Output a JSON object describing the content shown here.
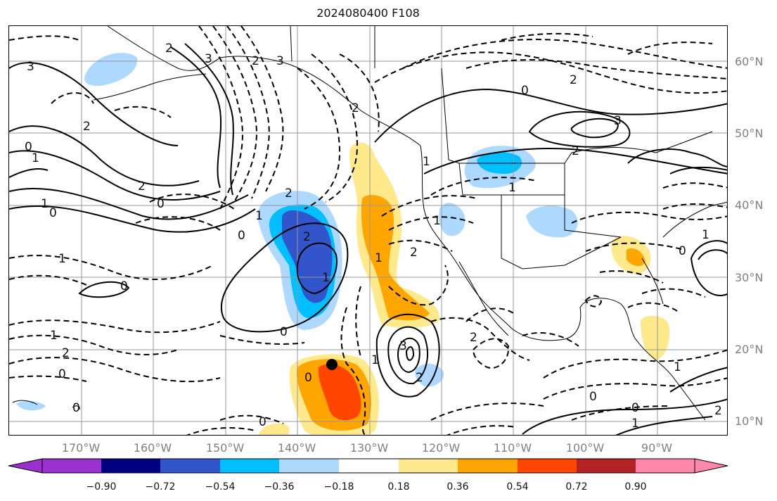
{
  "title": "2024080400 F108",
  "lat_labels": [
    "60°N",
    "50°N",
    "40°N",
    "30°N",
    "20°N",
    "10°N"
  ],
  "lon_labels": [
    "170°W",
    "160°W",
    "150°W",
    "140°W",
    "130°W",
    "120°W",
    "110°W",
    "100°W",
    "90°W"
  ],
  "colorbar": {
    "colors": [
      "#9b30d0",
      "#000080",
      "#3355cc",
      "#00bfff",
      "#add8ff",
      "#ffffff",
      "#ffe98a",
      "#ffa500",
      "#ff4500",
      "#b22222",
      "#ff88aa"
    ],
    "tick_labels": [
      "−0.90",
      "−0.72",
      "−0.54",
      "−0.36",
      "−0.18",
      "0.18",
      "0.36",
      "0.54",
      "0.72",
      "0.90"
    ]
  },
  "contour_labels": [
    "3",
    "2",
    "1",
    "0",
    "0",
    "1",
    "2",
    "2",
    "0",
    "1",
    "2",
    "3",
    "2",
    "1",
    "0",
    "2",
    "3",
    "2",
    "1",
    "0",
    "1",
    "2",
    "1",
    "0",
    "1",
    "2",
    "1",
    "0",
    "0",
    "0",
    "3",
    "2",
    "1",
    "2",
    "0",
    "0",
    "1",
    "0",
    "0",
    "1",
    "2",
    "3",
    "2",
    "1",
    "0",
    "1",
    "2"
  ],
  "marker": {
    "label": ""
  }
}
